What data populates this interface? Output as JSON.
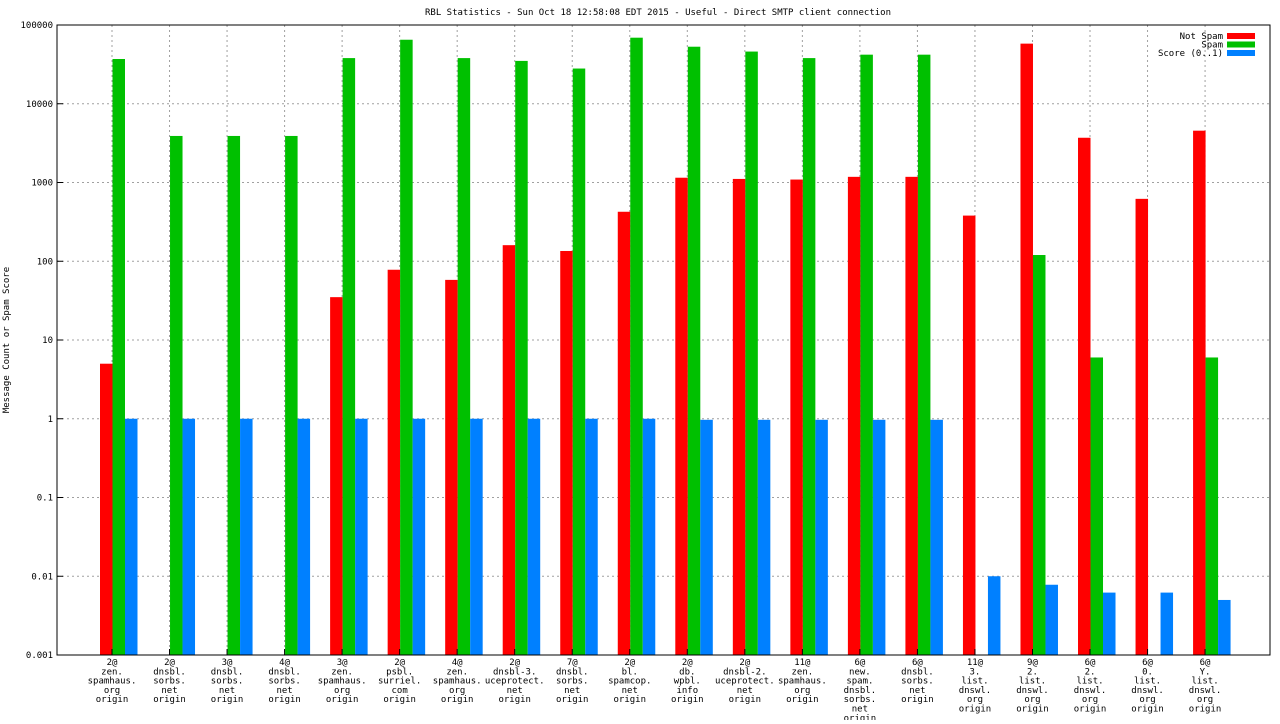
{
  "chart_data": {
    "type": "bar",
    "title": "RBL Statistics - Sun Oct 18 12:58:08 EDT 2015 - Useful - Direct SMTP client connection",
    "xlabel": "",
    "ylabel": "Message Count or Spam Score",
    "yscale": "log",
    "ylim": [
      0.001,
      100000
    ],
    "yticks": [
      "0.001",
      "0.01",
      "0.1",
      "1",
      "10",
      "100",
      "1000",
      "10000",
      "100000"
    ],
    "grid": true,
    "legend_position": "top-right",
    "categories": [
      [
        "2@",
        "zen.",
        "spamhaus.",
        "org",
        "origin"
      ],
      [
        "2@",
        "dnsbl.",
        "sorbs.",
        "net",
        "origin"
      ],
      [
        "3@",
        "dnsbl.",
        "sorbs.",
        "net",
        "origin"
      ],
      [
        "4@",
        "dnsbl.",
        "sorbs.",
        "net",
        "origin"
      ],
      [
        "3@",
        "zen.",
        "spamhaus.",
        "org",
        "origin"
      ],
      [
        "2@",
        "psbl.",
        "surriel.",
        "com",
        "origin"
      ],
      [
        "4@",
        "zen.",
        "spamhaus.",
        "org",
        "origin"
      ],
      [
        "2@",
        "dnsbl-3.",
        "uceprotect.",
        "net",
        "origin"
      ],
      [
        "7@",
        "dnsbl.",
        "sorbs.",
        "net",
        "origin"
      ],
      [
        "2@",
        "bl.",
        "spamcop.",
        "net",
        "origin"
      ],
      [
        "2@",
        "db.",
        "wpbl.",
        "info",
        "origin"
      ],
      [
        "2@",
        "dnsbl-2.",
        "uceprotect.",
        "net",
        "origin"
      ],
      [
        "11@",
        "zen.",
        "spamhaus.",
        "org",
        "origin"
      ],
      [
        "6@",
        "new.",
        "spam.",
        "dnsbl.",
        "sorbs.",
        "net",
        "origin"
      ],
      [
        "6@",
        "dnsbl.",
        "sorbs.",
        "net",
        "origin"
      ],
      [
        "11@",
        "3.",
        "list.",
        "dnswl.",
        "org",
        "origin"
      ],
      [
        "9@",
        "2.",
        "list.",
        "dnswl.",
        "org",
        "origin"
      ],
      [
        "6@",
        "2.",
        "list.",
        "dnswl.",
        "org",
        "origin"
      ],
      [
        "6@",
        "0.",
        "list.",
        "dnswl.",
        "org",
        "origin"
      ],
      [
        "6@",
        "Y.",
        "list.",
        "dnswl.",
        "org",
        "origin"
      ]
    ],
    "series": [
      {
        "name": "Not Spam",
        "color": "#ff0000",
        "values": [
          5,
          null,
          null,
          null,
          35,
          78,
          58,
          160,
          135,
          425,
          1150,
          1110,
          1090,
          1180,
          1180,
          380,
          58000,
          3700,
          620,
          4550
        ]
      },
      {
        "name": "Spam",
        "color": "#00c000",
        "values": [
          37000,
          3900,
          3900,
          3900,
          38000,
          65000,
          38000,
          35000,
          28000,
          69000,
          53000,
          46000,
          38000,
          42000,
          42000,
          null,
          120,
          6,
          null,
          6
        ]
      },
      {
        "name": "Score (0..1)",
        "color": "#0080ff",
        "values": [
          1,
          1,
          1,
          1,
          1,
          1,
          1,
          1,
          1,
          1,
          0.97,
          0.97,
          0.97,
          0.97,
          0.97,
          0.01,
          0.0078,
          0.0062,
          0.0062,
          0.005
        ]
      }
    ]
  }
}
